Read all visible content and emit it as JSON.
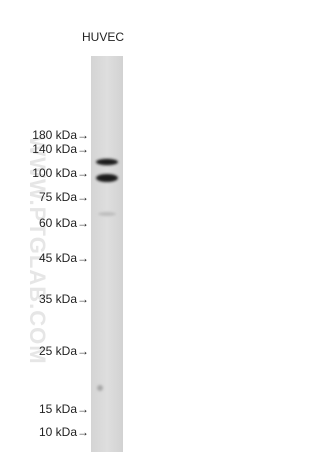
{
  "lane_label": "HUVEC",
  "markers": [
    "180 kDa→",
    "140 kDa→",
    "100 kDa→",
    "75 kDa→",
    "60 kDa→",
    "45 kDa→",
    "35 kDa→",
    "25 kDa→",
    "15 kDa→",
    "10 kDa→"
  ],
  "watermark": "WWW.PTGLAB.COM"
}
